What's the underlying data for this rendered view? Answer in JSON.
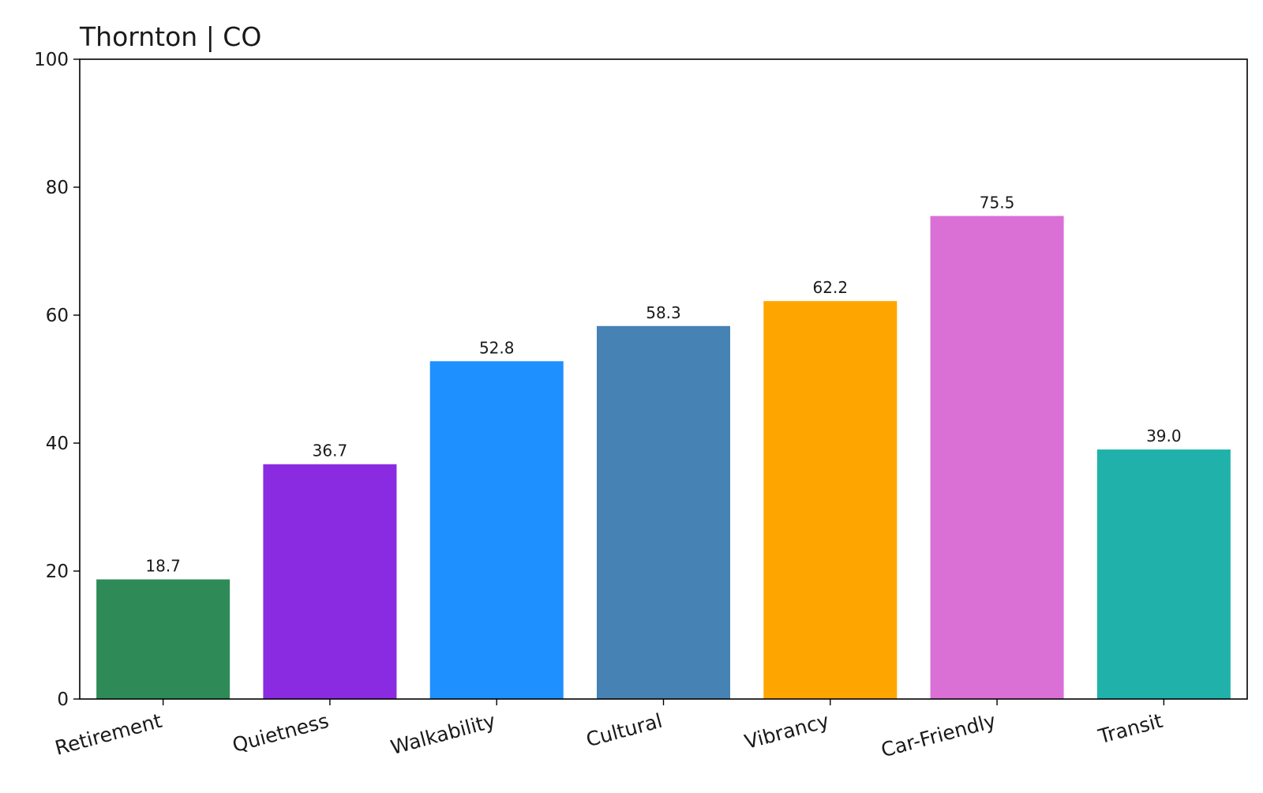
{
  "chart_data": {
    "type": "bar",
    "title": "Thornton | CO",
    "xlabel": "",
    "ylabel": "",
    "categories": [
      "Retirement",
      "Quietness",
      "Walkability",
      "Cultural",
      "Vibrancy",
      "Car-Friendly",
      "Transit"
    ],
    "values": [
      18.7,
      36.7,
      52.8,
      58.3,
      62.2,
      75.5,
      39.0
    ],
    "value_labels": [
      "18.7",
      "36.7",
      "52.8",
      "58.3",
      "62.2",
      "75.5",
      "39.0"
    ],
    "colors": [
      "#2e8b57",
      "#8a2be2",
      "#1e90ff",
      "#4682b4",
      "#ffa500",
      "#da70d6",
      "#20b2aa"
    ],
    "ylim": [
      0,
      100
    ],
    "yticks": [
      0,
      20,
      40,
      60,
      80,
      100
    ],
    "grid": false,
    "legend": "none"
  }
}
